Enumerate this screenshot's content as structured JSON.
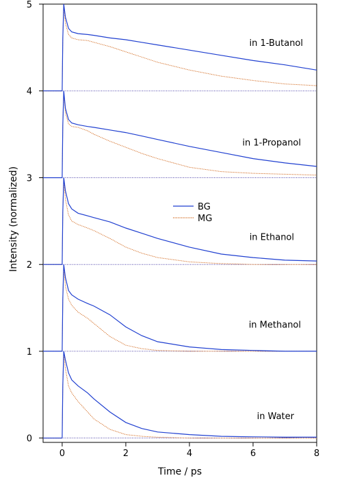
{
  "chart_data": {
    "type": "line",
    "title": "",
    "xlabel": "Time / ps",
    "ylabel": "Intensity (normalized)",
    "xlim": [
      -0.6,
      8.0
    ],
    "ylim": [
      -0.05,
      5.0
    ],
    "x_ticks": [
      0,
      2,
      4,
      6,
      8
    ],
    "y_ticks": [
      0,
      1,
      2,
      3,
      4,
      5
    ],
    "grid": false,
    "legend": {
      "position": "center",
      "entries": [
        {
          "name": "BG",
          "color": "#1f3fd0",
          "style": "solid"
        },
        {
          "name": "MG",
          "color": "#d2691e",
          "style": "dotted"
        }
      ]
    },
    "baselines": [
      0,
      1,
      2,
      3,
      4
    ],
    "baseline_color": "#4a3fa8",
    "panels": [
      {
        "label": "in Water",
        "offset": 0,
        "BG": {
          "x": [
            -0.6,
            0.0,
            0.02,
            0.05,
            0.1,
            0.2,
            0.3,
            0.5,
            0.8,
            1.0,
            1.5,
            2.0,
            2.5,
            3.0,
            4.0,
            5.0,
            6.0,
            7.0,
            8.0
          ],
          "y": [
            0.0,
            0.0,
            0.6,
            1.0,
            0.9,
            0.75,
            0.67,
            0.6,
            0.52,
            0.45,
            0.3,
            0.18,
            0.11,
            0.07,
            0.04,
            0.02,
            0.015,
            0.01,
            0.01
          ]
        },
        "MG": {
          "x": [
            -0.6,
            0.0,
            0.02,
            0.05,
            0.1,
            0.2,
            0.3,
            0.5,
            0.8,
            1.0,
            1.5,
            2.0,
            2.5,
            3.0,
            4.0,
            5.0,
            6.0,
            7.0,
            8.0
          ],
          "y": [
            0.0,
            0.0,
            0.6,
            0.98,
            0.8,
            0.6,
            0.52,
            0.42,
            0.3,
            0.22,
            0.1,
            0.04,
            0.02,
            0.01,
            0.0,
            0.0,
            0.0,
            0.0,
            0.0
          ]
        }
      },
      {
        "label": "in Methanol",
        "offset": 1,
        "BG": {
          "x": [
            -0.6,
            0.0,
            0.02,
            0.05,
            0.1,
            0.2,
            0.3,
            0.5,
            0.8,
            1.0,
            1.5,
            2.0,
            2.5,
            3.0,
            4.0,
            5.0,
            6.0,
            7.0,
            8.0
          ],
          "y": [
            0.0,
            0.0,
            0.6,
            1.0,
            0.85,
            0.7,
            0.65,
            0.6,
            0.55,
            0.52,
            0.42,
            0.28,
            0.18,
            0.11,
            0.05,
            0.02,
            0.01,
            0.0,
            0.0
          ]
        },
        "MG": {
          "x": [
            -0.6,
            0.0,
            0.02,
            0.05,
            0.1,
            0.2,
            0.3,
            0.5,
            0.8,
            1.0,
            1.5,
            2.0,
            2.5,
            3.0,
            4.0,
            5.0,
            6.0,
            7.0,
            8.0
          ],
          "y": [
            0.0,
            0.0,
            0.6,
            0.98,
            0.75,
            0.6,
            0.53,
            0.45,
            0.38,
            0.32,
            0.17,
            0.07,
            0.03,
            0.01,
            0.0,
            0.0,
            0.0,
            0.0,
            0.0
          ]
        }
      },
      {
        "label": "in Ethanol",
        "offset": 2,
        "BG": {
          "x": [
            -0.6,
            0.0,
            0.02,
            0.05,
            0.1,
            0.2,
            0.3,
            0.5,
            0.8,
            1.0,
            1.5,
            2.0,
            2.5,
            3.0,
            4.0,
            5.0,
            6.0,
            7.0,
            8.0
          ],
          "y": [
            0.0,
            0.0,
            0.6,
            1.0,
            0.85,
            0.7,
            0.64,
            0.59,
            0.56,
            0.54,
            0.49,
            0.42,
            0.36,
            0.3,
            0.2,
            0.12,
            0.08,
            0.05,
            0.04
          ]
        },
        "MG": {
          "x": [
            -0.6,
            0.0,
            0.02,
            0.05,
            0.1,
            0.2,
            0.3,
            0.5,
            0.8,
            1.0,
            1.5,
            2.0,
            2.5,
            3.0,
            4.0,
            5.0,
            6.0,
            7.0,
            8.0
          ],
          "y": [
            0.0,
            0.0,
            0.6,
            0.98,
            0.75,
            0.57,
            0.5,
            0.46,
            0.42,
            0.39,
            0.3,
            0.2,
            0.13,
            0.08,
            0.03,
            0.01,
            0.0,
            0.0,
            0.0
          ]
        }
      },
      {
        "label": "in 1-Propanol",
        "offset": 3,
        "BG": {
          "x": [
            -0.6,
            0.0,
            0.02,
            0.05,
            0.1,
            0.2,
            0.3,
            0.5,
            0.8,
            1.0,
            1.5,
            2.0,
            2.5,
            3.0,
            4.0,
            5.0,
            6.0,
            7.0,
            8.0
          ],
          "y": [
            0.0,
            0.0,
            0.6,
            1.0,
            0.8,
            0.67,
            0.63,
            0.61,
            0.59,
            0.58,
            0.55,
            0.52,
            0.48,
            0.44,
            0.36,
            0.29,
            0.22,
            0.17,
            0.13
          ]
        },
        "MG": {
          "x": [
            -0.6,
            0.0,
            0.02,
            0.05,
            0.1,
            0.2,
            0.3,
            0.5,
            0.8,
            1.0,
            1.5,
            2.0,
            2.5,
            3.0,
            4.0,
            5.0,
            6.0,
            7.0,
            8.0
          ],
          "y": [
            0.0,
            0.0,
            0.6,
            0.98,
            0.75,
            0.62,
            0.59,
            0.58,
            0.54,
            0.5,
            0.42,
            0.35,
            0.28,
            0.22,
            0.12,
            0.07,
            0.05,
            0.04,
            0.03
          ]
        }
      },
      {
        "label": "in 1-Butanol",
        "offset": 4,
        "BG": {
          "x": [
            -0.6,
            0.0,
            0.02,
            0.05,
            0.1,
            0.2,
            0.3,
            0.5,
            0.8,
            1.0,
            1.5,
            2.0,
            2.5,
            3.0,
            4.0,
            5.0,
            6.0,
            7.0,
            8.0
          ],
          "y": [
            0.0,
            0.0,
            0.6,
            1.0,
            0.85,
            0.72,
            0.68,
            0.66,
            0.65,
            0.64,
            0.61,
            0.59,
            0.56,
            0.53,
            0.47,
            0.41,
            0.35,
            0.3,
            0.24
          ]
        },
        "MG": {
          "x": [
            -0.6,
            0.0,
            0.02,
            0.05,
            0.1,
            0.2,
            0.3,
            0.5,
            0.8,
            1.0,
            1.5,
            2.0,
            2.5,
            3.0,
            4.0,
            5.0,
            6.0,
            7.0,
            8.0
          ],
          "y": [
            0.0,
            0.0,
            0.6,
            0.98,
            0.78,
            0.65,
            0.61,
            0.59,
            0.58,
            0.56,
            0.51,
            0.45,
            0.39,
            0.33,
            0.24,
            0.17,
            0.12,
            0.08,
            0.06
          ]
        }
      }
    ]
  }
}
